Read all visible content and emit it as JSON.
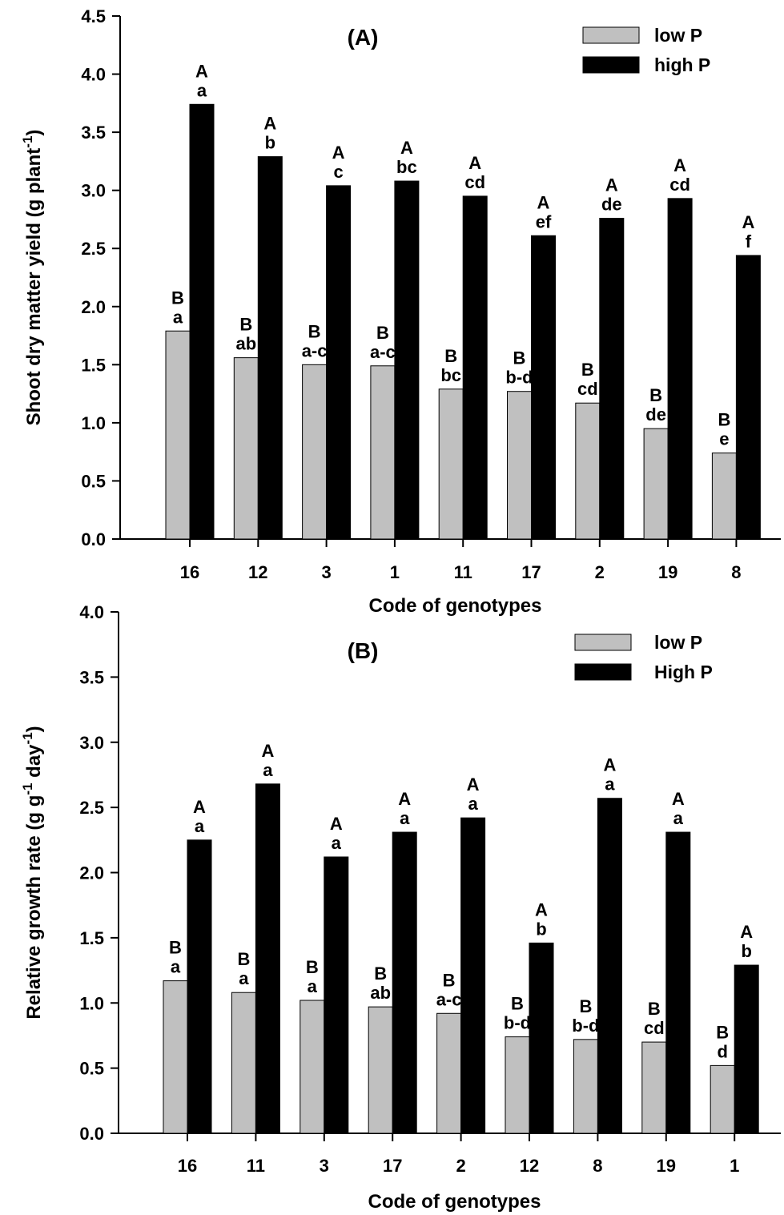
{
  "chart_data": [
    {
      "type": "bar",
      "panel_label": "(A)",
      "xlabel": "Code of genotypes",
      "ylabel": "Shoot dry matter yield (g plant",
      "ylabel_sup": "-1",
      "ylabel_end": ")",
      "ylim": [
        0,
        4.5
      ],
      "yticks": [
        "0.0",
        "0.5",
        "1.0",
        "1.5",
        "2.0",
        "2.5",
        "3.0",
        "3.5",
        "4.0",
        "4.5"
      ],
      "legend_position": "top-right",
      "categories": [
        "16",
        "12",
        "3",
        "1",
        "11",
        "17",
        "2",
        "19",
        "8"
      ],
      "series": [
        {
          "name": "low P",
          "color": "#c0c0c0",
          "values": [
            1.79,
            1.56,
            1.5,
            1.49,
            1.29,
            1.27,
            1.17,
            0.95,
            0.74
          ],
          "labels_top": [
            "B",
            "B",
            "B",
            "B",
            "B",
            "B",
            "B",
            "B",
            "B"
          ],
          "labels_bottom": [
            "a",
            "ab",
            "a-c",
            "a-c",
            "bc",
            "b-d",
            "cd",
            "de",
            "e"
          ]
        },
        {
          "name": "high P",
          "color": "#000000",
          "values": [
            3.74,
            3.29,
            3.04,
            3.08,
            2.95,
            2.61,
            2.76,
            2.93,
            2.44
          ],
          "labels_top": [
            "A",
            "A",
            "A",
            "A",
            "A",
            "A",
            "A",
            "A",
            "A"
          ],
          "labels_bottom": [
            "a",
            "b",
            "c",
            "bc",
            "cd",
            "ef",
            "de",
            "cd",
            "f"
          ]
        }
      ]
    },
    {
      "type": "bar",
      "panel_label": "(B)",
      "xlabel": "Code of genotypes",
      "ylabel": "Relative growth rate (g g",
      "ylabel_sup": "-1",
      "ylabel_mid": " day",
      "ylabel_sup2": "-1",
      "ylabel_end": ")",
      "ylim": [
        0,
        4.0
      ],
      "yticks": [
        "0.0",
        "0.5",
        "1.0",
        "1.5",
        "2.0",
        "2.5",
        "3.0",
        "3.5",
        "4.0"
      ],
      "legend_position": "top-right",
      "categories": [
        "16",
        "11",
        "3",
        "17",
        "2",
        "12",
        "8",
        "19",
        "1"
      ],
      "series": [
        {
          "name": "low P",
          "color": "#c0c0c0",
          "values": [
            1.17,
            1.08,
            1.02,
            0.97,
            0.92,
            0.74,
            0.72,
            0.7,
            0.52
          ],
          "labels_top": [
            "B",
            "B",
            "B",
            "B",
            "B",
            "B",
            "B",
            "B",
            "B"
          ],
          "labels_bottom": [
            "a",
            "a",
            "a",
            "ab",
            "a-c",
            "b-d",
            "b-d",
            "cd",
            "d"
          ]
        },
        {
          "name": "High P",
          "color": "#000000",
          "values": [
            2.25,
            2.68,
            2.12,
            2.31,
            2.42,
            1.46,
            2.57,
            2.31,
            1.29
          ],
          "labels_top": [
            "A",
            "A",
            "A",
            "A",
            "A",
            "A",
            "A",
            "A",
            "A"
          ],
          "labels_bottom": [
            "a",
            "a",
            "a",
            "a",
            "a",
            "b",
            "a",
            "a",
            "b"
          ]
        }
      ]
    }
  ]
}
